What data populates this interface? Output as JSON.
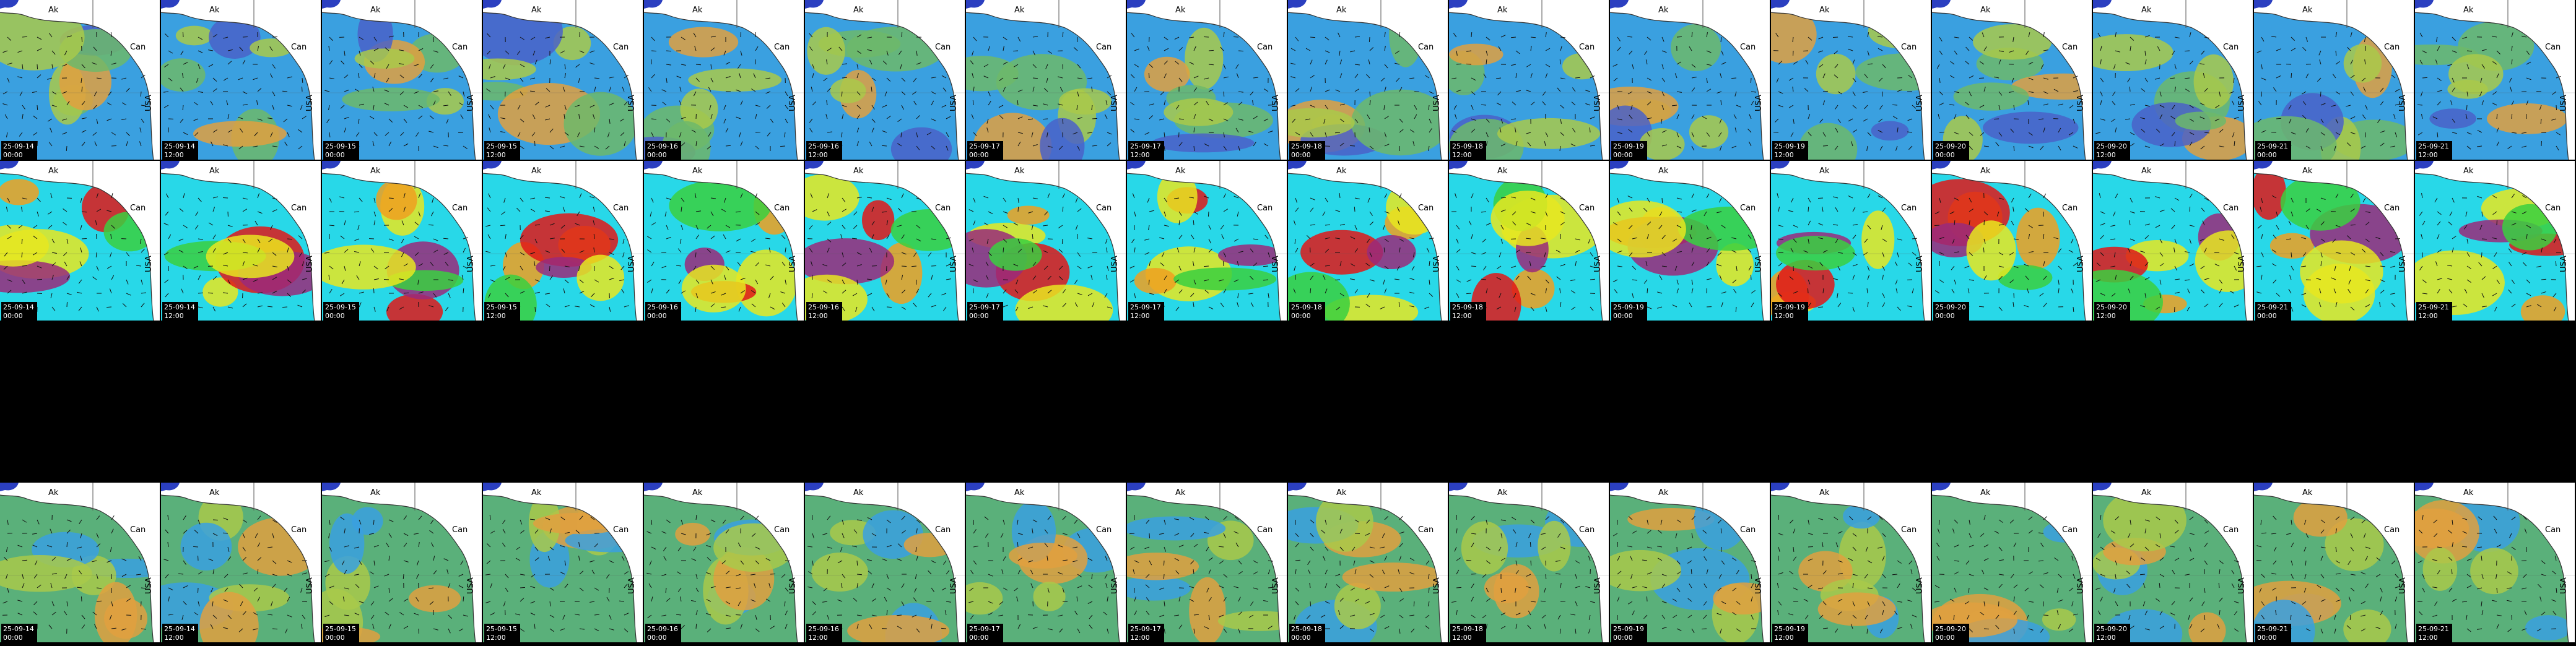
{
  "labels": {
    "alaska": "Ak",
    "canada": "Can",
    "usa": "USA"
  },
  "rows": [
    {
      "panels": [
        {
          "date": "25-09-14",
          "time": "00:00"
        },
        {
          "date": "25-09-14",
          "time": "12:00"
        },
        {
          "date": "25-09-15",
          "time": "00:00"
        },
        {
          "date": "25-09-15",
          "time": "12:00"
        },
        {
          "date": "25-09-16",
          "time": "00:00"
        },
        {
          "date": "25-09-16",
          "time": "12:00"
        },
        {
          "date": "25-09-17",
          "time": "00:00"
        },
        {
          "date": "25-09-17",
          "time": "12:00"
        },
        {
          "date": "25-09-18",
          "time": "00:00"
        },
        {
          "date": "25-09-18",
          "time": "12:00"
        },
        {
          "date": "25-09-19",
          "time": "00:00"
        },
        {
          "date": "25-09-19",
          "time": "12:00"
        },
        {
          "date": "25-09-20",
          "time": "00:00"
        },
        {
          "date": "25-09-20",
          "time": "12:00"
        },
        {
          "date": "25-09-21",
          "time": "00:00"
        },
        {
          "date": "25-09-21",
          "time": "12:00"
        }
      ]
    },
    {
      "panels": [
        {
          "date": "25-09-14",
          "time": "00:00"
        },
        {
          "date": "25-09-14",
          "time": "12:00"
        },
        {
          "date": "25-09-15",
          "time": "00:00"
        },
        {
          "date": "25-09-15",
          "time": "12:00"
        },
        {
          "date": "25-09-16",
          "time": "00:00"
        },
        {
          "date": "25-09-16",
          "time": "12:00"
        },
        {
          "date": "25-09-17",
          "time": "00:00"
        },
        {
          "date": "25-09-17",
          "time": "12:00"
        },
        {
          "date": "25-09-18",
          "time": "00:00"
        },
        {
          "date": "25-09-18",
          "time": "12:00"
        },
        {
          "date": "25-09-19",
          "time": "00:00"
        },
        {
          "date": "25-09-19",
          "time": "12:00"
        },
        {
          "date": "25-09-20",
          "time": "00:00"
        },
        {
          "date": "25-09-20",
          "time": "12:00"
        },
        {
          "date": "25-09-21",
          "time": "00:00"
        },
        {
          "date": "25-09-21",
          "time": "12:00"
        }
      ]
    },
    {
      "panels": [
        {
          "date": "25-09-14",
          "time": "00:00"
        },
        {
          "date": "25-09-14",
          "time": "12:00"
        },
        {
          "date": "25-09-15",
          "time": "00:00"
        },
        {
          "date": "25-09-15",
          "time": "12:00"
        },
        {
          "date": "25-09-16",
          "time": "00:00"
        },
        {
          "date": "25-09-16",
          "time": "12:00"
        },
        {
          "date": "25-09-17",
          "time": "00:00"
        },
        {
          "date": "25-09-17",
          "time": "12:00"
        },
        {
          "date": "25-09-18",
          "time": "00:00"
        },
        {
          "date": "25-09-18",
          "time": "12:00"
        },
        {
          "date": "25-09-19",
          "time": "00:00"
        },
        {
          "date": "25-09-19",
          "time": "12:00"
        },
        {
          "date": "25-09-20",
          "time": "00:00"
        },
        {
          "date": "25-09-20",
          "time": "12:00"
        },
        {
          "date": "25-09-21",
          "time": "00:00"
        },
        {
          "date": "25-09-21",
          "time": "12:00"
        }
      ]
    }
  ]
}
